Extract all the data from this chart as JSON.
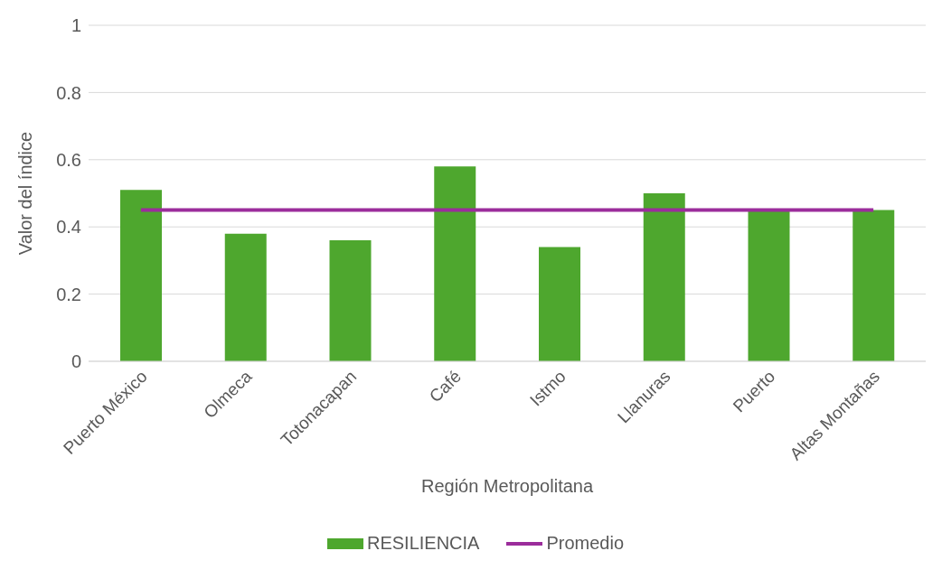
{
  "chart_data": {
    "type": "bar",
    "xlabel": "Región Metropolitana",
    "ylabel": "Valor del índice",
    "categories": [
      "Puerto México",
      "Olmeca",
      "Totonacapan",
      "Café",
      "Istmo",
      "Llanuras",
      "Puerto",
      "Altas Montañas"
    ],
    "series": [
      {
        "name": "RESILIENCIA",
        "color": "#4ea72e",
        "values": [
          0.51,
          0.38,
          0.36,
          0.58,
          0.34,
          0.5,
          0.45,
          0.45
        ]
      },
      {
        "name": "Promedio",
        "type": "line",
        "color": "#9b2d9b",
        "values": [
          0.45,
          0.45,
          0.45,
          0.45,
          0.45,
          0.45,
          0.45,
          0.45
        ]
      }
    ],
    "ylim": [
      0,
      1
    ],
    "yticks": [
      0,
      0.2,
      0.4,
      0.6,
      0.8,
      1
    ],
    "grid": "y",
    "legend": "bottom",
    "marker": "none"
  }
}
